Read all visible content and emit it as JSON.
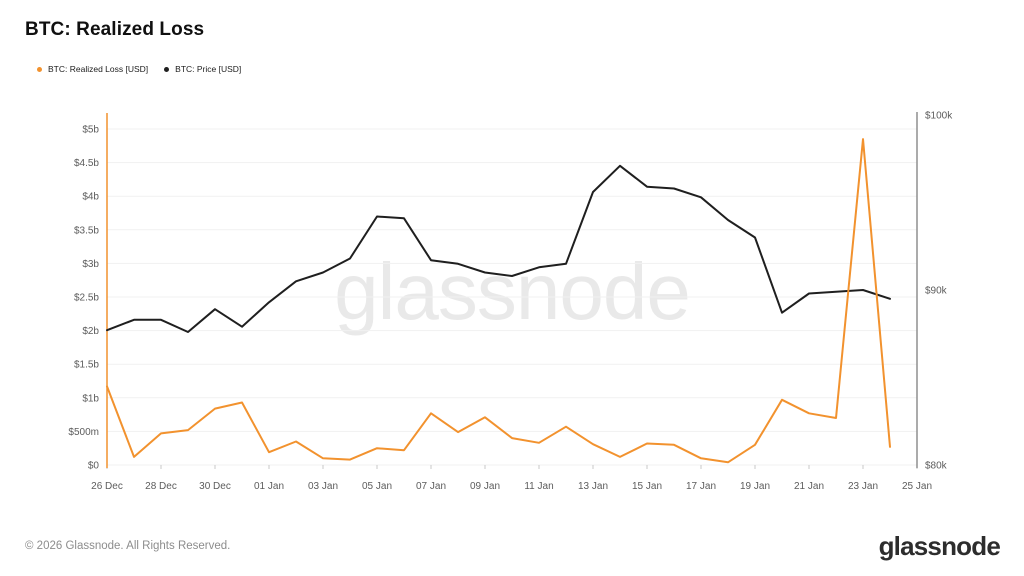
{
  "header": {
    "title": "BTC: Realized Loss"
  },
  "legend": {
    "items": [
      {
        "label": "BTC: Realized Loss [USD]",
        "color": "#f2922e"
      },
      {
        "label": "BTC: Price [USD]",
        "color": "#1f1f1f"
      }
    ]
  },
  "watermark": {
    "text": "glassnode"
  },
  "footer": {
    "copyright": "© 2026 Glassnode. All Rights Reserved.",
    "logo_text": "glassnode"
  },
  "chart_data": {
    "type": "line",
    "title": "BTC: Realized Loss",
    "x": [
      "26 Dec",
      "27 Dec",
      "28 Dec",
      "29 Dec",
      "30 Dec",
      "31 Dec",
      "01 Jan",
      "02 Jan",
      "03 Jan",
      "04 Jan",
      "05 Jan",
      "06 Jan",
      "07 Jan",
      "08 Jan",
      "09 Jan",
      "10 Jan",
      "11 Jan",
      "12 Jan",
      "13 Jan",
      "14 Jan",
      "15 Jan",
      "16 Jan",
      "17 Jan",
      "18 Jan",
      "19 Jan",
      "20 Jan",
      "21 Jan",
      "22 Jan",
      "23 Jan",
      "24 Jan"
    ],
    "series": [
      {
        "name": "BTC: Realized Loss [USD]",
        "axis": "left",
        "unit": "USD billions",
        "color": "#f2922e",
        "values": [
          1.17,
          0.12,
          0.47,
          0.52,
          0.84,
          0.93,
          0.19,
          0.35,
          0.1,
          0.08,
          0.25,
          0.22,
          0.77,
          0.49,
          0.71,
          0.4,
          0.33,
          0.57,
          0.31,
          0.12,
          0.32,
          0.3,
          0.1,
          0.04,
          0.3,
          0.97,
          0.77,
          0.7,
          4.85,
          0.27
        ]
      },
      {
        "name": "BTC: Price [USD]",
        "axis": "right",
        "unit": "USD thousands",
        "color": "#1f1f1f",
        "values": [
          87.7,
          88.3,
          88.3,
          87.6,
          88.9,
          87.9,
          89.3,
          90.5,
          91.0,
          91.8,
          94.2,
          94.1,
          91.7,
          91.5,
          91.0,
          90.8,
          91.3,
          91.5,
          95.6,
          97.1,
          95.9,
          95.8,
          95.3,
          94.0,
          93.0,
          88.7,
          89.8,
          89.9,
          90.0,
          89.5
        ]
      }
    ],
    "left_axis": {
      "color": "#f2922e",
      "range_billions": [
        0,
        5.2
      ],
      "ticks": [
        {
          "label": "$5b",
          "value": 5.0
        },
        {
          "label": "$4.5b",
          "value": 4.5
        },
        {
          "label": "$4b",
          "value": 4.0
        },
        {
          "label": "$3.5b",
          "value": 3.5
        },
        {
          "label": "$3b",
          "value": 3.0
        },
        {
          "label": "$2.5b",
          "value": 2.5
        },
        {
          "label": "$2b",
          "value": 2.0
        },
        {
          "label": "$1.5b",
          "value": 1.5
        },
        {
          "label": "$1b",
          "value": 1.0
        },
        {
          "label": "$500m",
          "value": 0.5
        },
        {
          "label": "$0",
          "value": 0.0
        }
      ]
    },
    "right_axis": {
      "color": "#8f8f8f",
      "range_thousands": [
        80,
        100
      ],
      "ticks": [
        {
          "label": "$100k",
          "value": 100
        },
        {
          "label": "$90k",
          "value": 90
        },
        {
          "label": "$80k",
          "value": 80
        }
      ]
    },
    "x_axis": {
      "tick_step_days": 2,
      "tick_labels": [
        "26 Dec",
        "28 Dec",
        "30 Dec",
        "01 Jan",
        "03 Jan",
        "05 Jan",
        "07 Jan",
        "09 Jan",
        "11 Jan",
        "13 Jan",
        "15 Jan",
        "17 Jan",
        "19 Jan",
        "21 Jan",
        "23 Jan",
        "25 Jan"
      ]
    },
    "grid": "horizontal",
    "legend_position": "top-left"
  }
}
